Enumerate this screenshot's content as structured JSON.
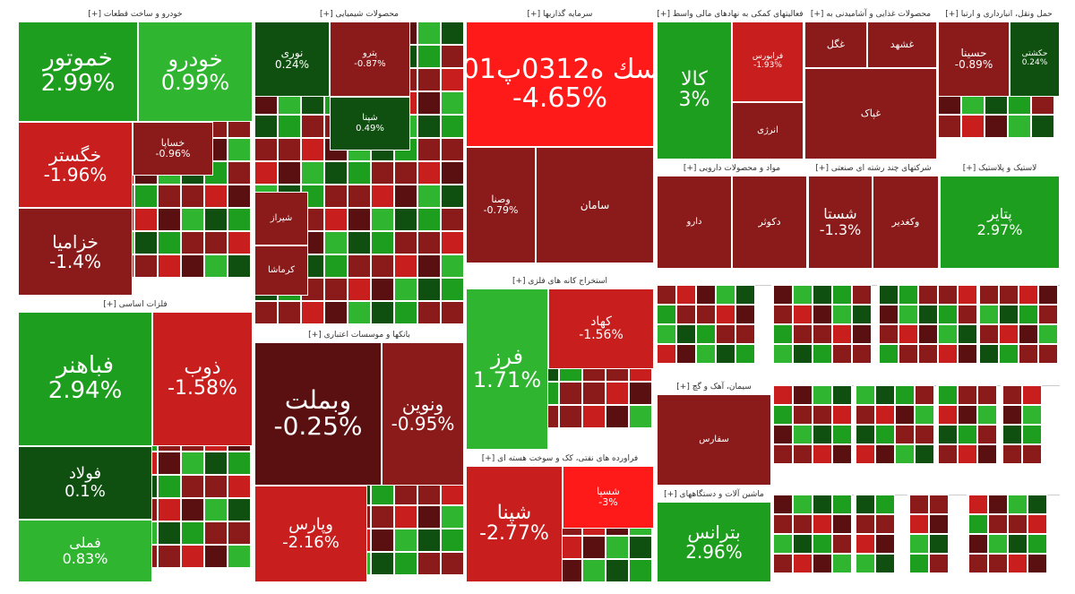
{
  "colors": {
    "strong_up": "#1e9e1e",
    "mid_up": "#2fb52f",
    "dark_up": "#0f4f0f",
    "flat": "#5a1010",
    "mid_down": "#8b1a1a",
    "strong_down": "#c81e1e",
    "bright_down": "#ff1a1a"
  },
  "chart_data": {
    "type": "treemap",
    "title": "",
    "sectors": [
      {
        "name": "خودرو و ساخت قطعات [+]",
        "stocks": [
          {
            "name": "خموتور",
            "change": "2.99%"
          },
          {
            "name": "خودرو",
            "change": "0.99%"
          },
          {
            "name": "خگستر",
            "change": "-1.96%"
          },
          {
            "name": "خساپا",
            "change": "-0.96%"
          },
          {
            "name": "خزامیا",
            "change": "-1.4%"
          }
        ]
      },
      {
        "name": "محصولات شیمیایی [+]",
        "stocks": [
          {
            "name": "نوری",
            "change": "0.24%"
          },
          {
            "name": "پترو",
            "change": "-0.87%"
          },
          {
            "name": "شپنا",
            "change": "0.49%"
          },
          {
            "name": "شیراز",
            "change": ""
          },
          {
            "name": "کرماشا",
            "change": ""
          }
        ]
      },
      {
        "name": "سرمایه گذاریها [+]",
        "stocks": [
          {
            "name": "سك ه0312پ01",
            "change": "-4.65%"
          },
          {
            "name": "وصنا",
            "change": "-0.79%"
          },
          {
            "name": "سامان",
            "change": ""
          }
        ]
      },
      {
        "name": "فعالیتهای کمکی به نهادهای مالی واسط [+]",
        "stocks": [
          {
            "name": "کالا",
            "change": "3%"
          },
          {
            "name": "فرابورس",
            "change": "-1.93%"
          },
          {
            "name": "انرژی",
            "change": ""
          }
        ]
      },
      {
        "name": "محصولات غذایی و آشامیدنی به [+]",
        "stocks": [
          {
            "name": "غگل",
            "change": ""
          },
          {
            "name": "غشهد",
            "change": ""
          },
          {
            "name": "غپاک",
            "change": ""
          }
        ]
      },
      {
        "name": "حمل ونقل، انبارداری و ارتبا [+]",
        "stocks": [
          {
            "name": "حسینا",
            "change": "-0.89%"
          },
          {
            "name": "حکشتی",
            "change": "0.24%"
          }
        ]
      },
      {
        "name": "مواد و محصولات دارویی [+]",
        "stocks": [
          {
            "name": "دارو",
            "change": ""
          },
          {
            "name": "دکوثر",
            "change": ""
          }
        ]
      },
      {
        "name": "شرکتهای چند رشته ای صنعتی [+]",
        "stocks": [
          {
            "name": "شستا",
            "change": "-1.3%"
          },
          {
            "name": "وکغدیر",
            "change": ""
          }
        ]
      },
      {
        "name": "لاستیک و پلاستیک [+]",
        "stocks": [
          {
            "name": "پتایر",
            "change": "2.97%"
          }
        ]
      },
      {
        "name": "فلزات اساسی [+]",
        "stocks": [
          {
            "name": "فباهنر",
            "change": "2.94%"
          },
          {
            "name": "ذوب",
            "change": "-1.58%"
          },
          {
            "name": "فولاد",
            "change": "0.1%"
          },
          {
            "name": "فملی",
            "change": "0.83%"
          }
        ]
      },
      {
        "name": "بانکها و موسسات اعتباری [+]",
        "stocks": [
          {
            "name": "وبملت",
            "change": "-0.25%"
          },
          {
            "name": "ونوین",
            "change": "-0.95%"
          },
          {
            "name": "وپارس",
            "change": "-2.16%"
          }
        ]
      },
      {
        "name": "استخراج کانه های فلزی [+]",
        "stocks": [
          {
            "name": "فرز",
            "change": "1.71%"
          },
          {
            "name": "کهاد",
            "change": "-1.56%"
          }
        ]
      },
      {
        "name": "فراورده های نفتی، کک و سوخت هسته ای [+]",
        "stocks": [
          {
            "name": "شپنا",
            "change": "-2.77%"
          },
          {
            "name": "شسپا",
            "change": "-3%"
          }
        ]
      },
      {
        "name": "ماشین آلات و دستگاههای [+]",
        "stocks": [
          {
            "name": "بترانس",
            "change": "2.96%"
          }
        ]
      },
      {
        "name": "سیمان، آهک و گچ [+]",
        "stocks": [
          {
            "name": "سفارس",
            "change": ""
          }
        ]
      }
    ]
  }
}
